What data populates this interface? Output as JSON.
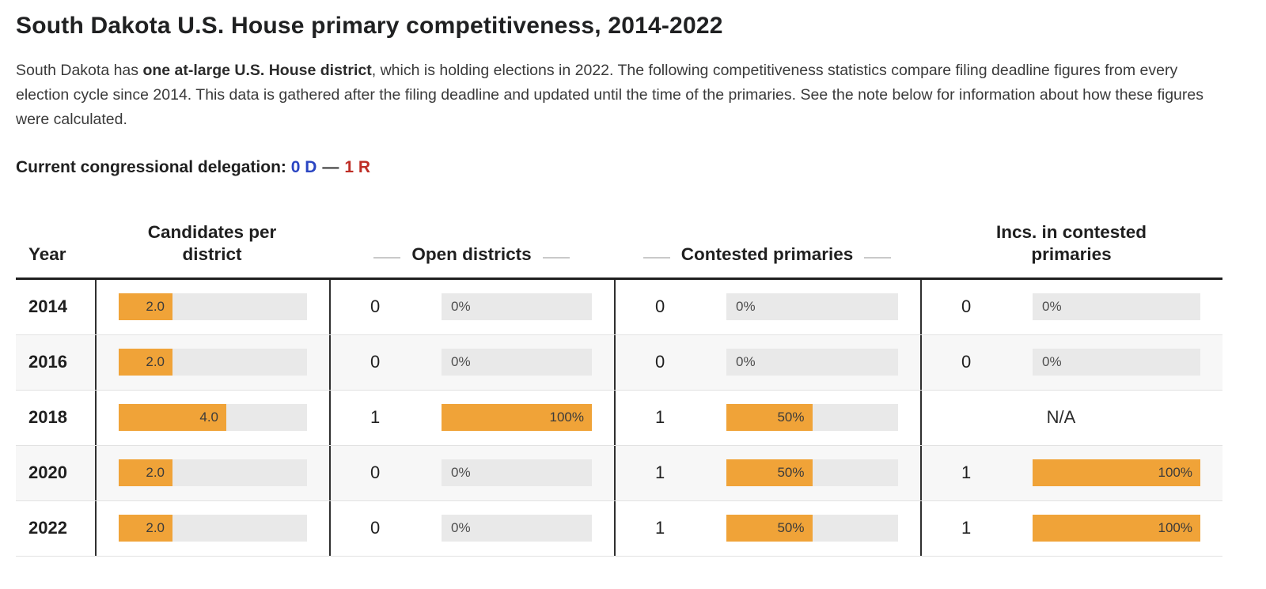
{
  "header": {
    "title": "South Dakota U.S. House primary competitiveness, 2014-2022",
    "intro_pre": "South Dakota has ",
    "intro_bold": "one at-large U.S. House district",
    "intro_post": ", which is holding elections in 2022. The following competitiveness statistics compare filing deadline figures from every election cycle since 2014. This data is gathered after the filing deadline and updated until the time of the primaries. See the note below for information about how these figures were calculated."
  },
  "delegation": {
    "label": "Current congressional delegation:",
    "dem": "0 D",
    "separator": "—",
    "rep": "1 R"
  },
  "colors": {
    "bar_orange": "#F0A338",
    "track_gray": "#E9E9E9",
    "dem_blue": "#2A45C2",
    "rep_red": "#BE2D25"
  },
  "chart_data": {
    "type": "table",
    "title": "South Dakota U.S. House primary competitiveness, 2014-2022",
    "columns": [
      "Year",
      "Candidates per district",
      "Open districts",
      "Contested primaries",
      "Incs. in contested primaries"
    ],
    "headers": [
      {
        "label": "Year",
        "dashes": false
      },
      {
        "label": "Candidates per district",
        "dashes": false
      },
      {
        "label": "Open districts",
        "dashes": true
      },
      {
        "label": "Contested primaries",
        "dashes": true
      },
      {
        "label": "Incs. in contested primaries",
        "dashes": false
      }
    ],
    "candidates_bar_max": 7,
    "na_label": "N/A",
    "rows": [
      {
        "year": "2014",
        "candidates": 2.0,
        "candidates_label": "2.0",
        "open": {
          "count": 0,
          "pct": 0,
          "label": "0%"
        },
        "contested": {
          "count": 0,
          "pct": 0,
          "label": "0%"
        },
        "incs": {
          "count": 0,
          "pct": 0,
          "label": "0%"
        }
      },
      {
        "year": "2016",
        "candidates": 2.0,
        "candidates_label": "2.0",
        "open": {
          "count": 0,
          "pct": 0,
          "label": "0%"
        },
        "contested": {
          "count": 0,
          "pct": 0,
          "label": "0%"
        },
        "incs": {
          "count": 0,
          "pct": 0,
          "label": "0%"
        }
      },
      {
        "year": "2018",
        "candidates": 4.0,
        "candidates_label": "4.0",
        "open": {
          "count": 1,
          "pct": 100,
          "label": "100%"
        },
        "contested": {
          "count": 1,
          "pct": 50,
          "label": "50%"
        },
        "incs": null
      },
      {
        "year": "2020",
        "candidates": 2.0,
        "candidates_label": "2.0",
        "open": {
          "count": 0,
          "pct": 0,
          "label": "0%"
        },
        "contested": {
          "count": 1,
          "pct": 50,
          "label": "50%"
        },
        "incs": {
          "count": 1,
          "pct": 100,
          "label": "100%"
        }
      },
      {
        "year": "2022",
        "candidates": 2.0,
        "candidates_label": "2.0",
        "open": {
          "count": 0,
          "pct": 0,
          "label": "0%"
        },
        "contested": {
          "count": 1,
          "pct": 50,
          "label": "50%"
        },
        "incs": {
          "count": 1,
          "pct": 100,
          "label": "100%"
        }
      }
    ]
  }
}
